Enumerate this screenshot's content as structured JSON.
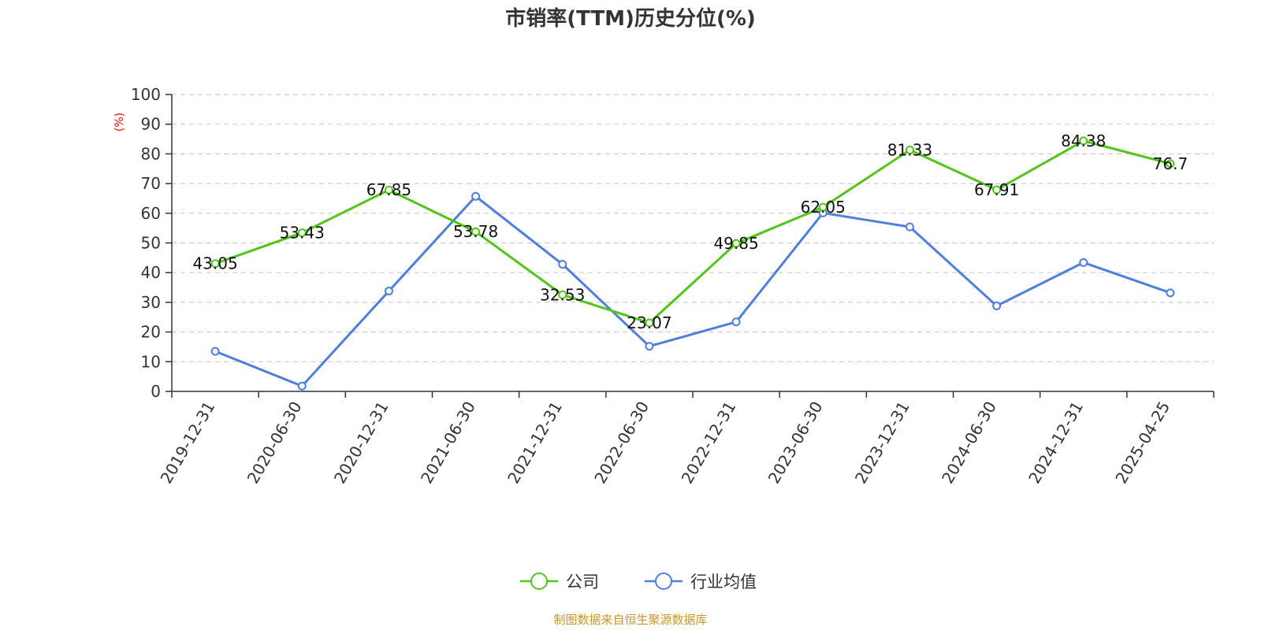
{
  "chart_data": {
    "type": "line",
    "title": "市销率(TTM)历史分位(%)",
    "ylabel": "(%)",
    "ylim": [
      0,
      100
    ],
    "yticks": [
      0,
      10,
      20,
      30,
      40,
      50,
      60,
      70,
      80,
      90,
      100
    ],
    "categories": [
      "2019-12-31",
      "2020-06-30",
      "2020-12-31",
      "2021-06-30",
      "2021-12-31",
      "2022-06-30",
      "2022-12-31",
      "2023-06-30",
      "2023-12-31",
      "2024-06-30",
      "2024-12-31",
      "2025-04-25"
    ],
    "series": [
      {
        "name": "公司",
        "color": "#52c41a",
        "values": [
          43.05,
          53.43,
          67.85,
          53.78,
          32.53,
          23.07,
          49.85,
          62.05,
          81.33,
          67.91,
          84.38,
          76.7
        ],
        "labels": [
          "43.05",
          "53.43",
          "67.85",
          "53.78",
          "32.53",
          "23.07",
          "49.85",
          "62.05",
          "81.33",
          "67.91",
          "84.38",
          "76.7"
        ]
      },
      {
        "name": "行业均值",
        "color": "#4e7fdc",
        "values": [
          13.5,
          1.8,
          33.8,
          65.7,
          42.8,
          15.2,
          23.4,
          60.1,
          55.4,
          28.8,
          43.4,
          33.2
        ]
      }
    ],
    "grid": true,
    "legend_position": "bottom-center"
  },
  "colors": {
    "title": "#333333",
    "axis": "#333333",
    "grid": "#cccccc",
    "unit": "#ff0000",
    "source": "#c8962a"
  },
  "footer": {
    "source": "制图数据来自恒生聚源数据库"
  }
}
